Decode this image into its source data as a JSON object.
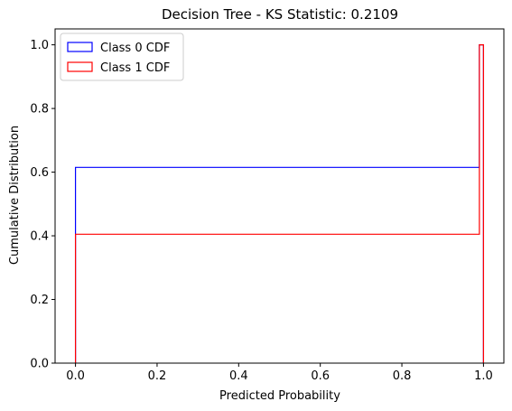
{
  "chart_data": {
    "type": "line",
    "style": "step",
    "title": "Decision Tree - KS Statistic: 0.2109",
    "xlabel": "Predicted Probability",
    "ylabel": "Cumulative Distribution",
    "xlim": [
      -0.05,
      1.05
    ],
    "ylim": [
      0,
      1.05
    ],
    "xticks": [
      "0.0",
      "0.2",
      "0.4",
      "0.6",
      "0.8",
      "1.0"
    ],
    "yticks": [
      "0.0",
      "0.2",
      "0.4",
      "0.6",
      "0.8",
      "1.0"
    ],
    "grid": false,
    "legend_position": "top-left",
    "series": [
      {
        "name": "Class 0 CDF",
        "color": "#0000ff",
        "x": [
          0.0,
          0.0,
          0.99,
          0.99,
          1.0,
          1.0
        ],
        "y": [
          0.0,
          0.615,
          0.615,
          1.0,
          1.0,
          0.0
        ]
      },
      {
        "name": "Class 1 CDF",
        "color": "#ff0000",
        "x": [
          0.0,
          0.0,
          0.99,
          0.99,
          1.0,
          1.0
        ],
        "y": [
          0.0,
          0.405,
          0.405,
          1.0,
          1.0,
          0.0
        ]
      }
    ]
  }
}
